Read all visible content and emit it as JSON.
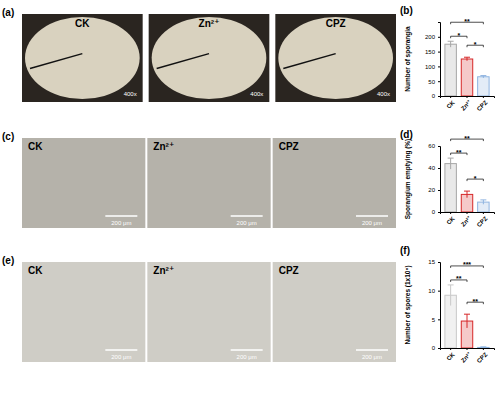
{
  "chart_data": [
    {
      "type": "bar",
      "title": "(b)",
      "ylabel": "Number of sporangia",
      "categories": [
        "CK",
        "Zn²⁺",
        "CPZ"
      ],
      "values": [
        175,
        125,
        65
      ],
      "errors": [
        10,
        6,
        4
      ],
      "colors": [
        "#a6a6a6",
        "#d62728",
        "#8fb4e0"
      ],
      "ylim": [
        0,
        250
      ],
      "yticks": [
        0,
        50,
        100,
        150,
        200
      ],
      "annotations": [
        {
          "text": "*",
          "from": 0,
          "to": 1
        },
        {
          "text": "*",
          "from": 1,
          "to": 2
        },
        {
          "text": "**",
          "from": 0,
          "to": 2
        }
      ]
    },
    {
      "type": "bar",
      "title": "(d)",
      "ylabel": "Sporangium emptying (%)",
      "categories": [
        "CK",
        "Zn²⁺",
        "CPZ"
      ],
      "values": [
        44,
        16,
        9
      ],
      "errors": [
        5,
        3,
        2
      ],
      "colors": [
        "#a6a6a6",
        "#d62728",
        "#8fb4e0"
      ],
      "ylim": [
        0,
        60
      ],
      "yticks": [
        0,
        20,
        40,
        60
      ],
      "annotations": [
        {
          "text": "**",
          "from": 0,
          "to": 1
        },
        {
          "text": "*",
          "from": 1,
          "to": 2
        },
        {
          "text": "**",
          "from": 0,
          "to": 2
        }
      ]
    },
    {
      "type": "bar",
      "title": "(f)",
      "ylabel": "Number of spores (1x10⁶)",
      "categories": [
        "CK",
        "Zn²⁺",
        "CPZ"
      ],
      "values": [
        9.2,
        4.7,
        0.1
      ],
      "errors": [
        1.8,
        1.2,
        0.1
      ],
      "colors": [
        "#c8c8c8",
        "#d62728",
        "#8fb4e0"
      ],
      "ylim": [
        0,
        15
      ],
      "yticks": [
        0,
        5,
        10,
        15
      ],
      "annotations": [
        {
          "text": "**",
          "from": 0,
          "to": 1
        },
        {
          "text": "**",
          "from": 1,
          "to": 2
        },
        {
          "text": "***",
          "from": 0,
          "to": 2
        }
      ]
    }
  ],
  "images": [
    {
      "label": "(a)",
      "panels": [
        "CK",
        "Zn²⁺",
        "CPZ"
      ],
      "magnification": "400x"
    },
    {
      "label": "(c)",
      "panels": [
        "CK",
        "Zn²⁺",
        "CPZ"
      ],
      "scale_bar": "200 μm"
    },
    {
      "label": "(e)",
      "panels": [
        "CK",
        "Zn²⁺",
        "CPZ"
      ],
      "scale_bar": "200 μm"
    }
  ]
}
